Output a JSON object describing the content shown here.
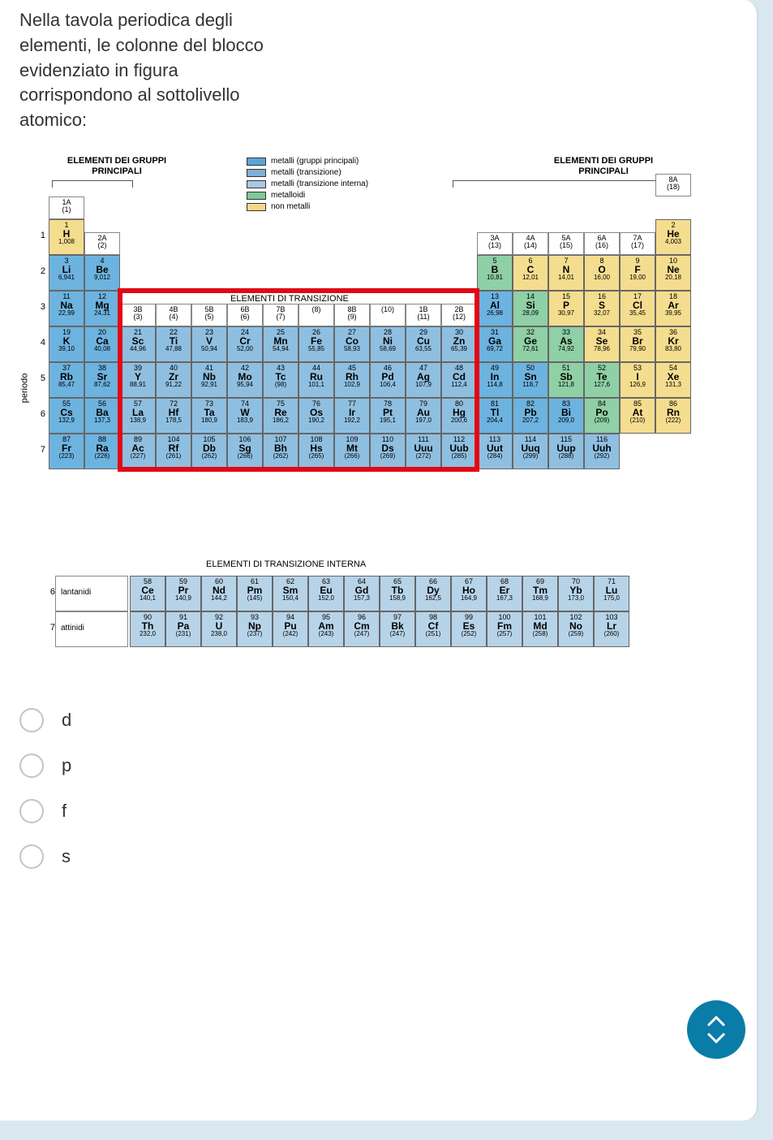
{
  "question": "Nella tavola periodica degli elementi, le colonne del blocco evidenziato in figura corrispondono al sottolivello atomico:",
  "headers": {
    "left": "ELEMENTI DEI GRUPPI PRINCIPALI",
    "right": "ELEMENTI DEI GRUPPI PRINCIPALI",
    "transition": "ELEMENTI DI TRANSIZIONE",
    "inner_transition": "ELEMENTI DI TRANSIZIONE INTERNA",
    "period_axis": "periodo"
  },
  "legend": [
    {
      "label": "metalli (gruppi principali)",
      "color": "#5aa6d8"
    },
    {
      "label": "metalli (transizione)",
      "color": "#7fb0d6"
    },
    {
      "label": "metalli (transizione interna)",
      "color": "#a9c8e2"
    },
    {
      "label": "metalloidi",
      "color": "#7fc89a"
    },
    {
      "label": "non metalli",
      "color": "#f4d88a"
    }
  ],
  "colors": {
    "main_metal": "#6db3df",
    "trans_metal": "#8fbfe0",
    "inner_trans": "#b7d3e8",
    "metalloid": "#8fd0a6",
    "nonmetal": "#f5dd8f",
    "highlight": "#e30613",
    "header_cell": "#ffffff"
  },
  "group_headers": [
    {
      "col": 0,
      "top": "1A",
      "bot": "(1)"
    },
    {
      "col": 1,
      "top": "2A",
      "bot": "(2)"
    },
    {
      "col": 2,
      "top": "3B",
      "bot": "(3)"
    },
    {
      "col": 3,
      "top": "4B",
      "bot": "(4)"
    },
    {
      "col": 4,
      "top": "5B",
      "bot": "(5)"
    },
    {
      "col": 5,
      "top": "6B",
      "bot": "(6)"
    },
    {
      "col": 6,
      "top": "7B",
      "bot": "(7)"
    },
    {
      "col": 7,
      "top": "",
      "bot": "(8)"
    },
    {
      "col": 8,
      "top": "8B",
      "bot": "(9)"
    },
    {
      "col": 9,
      "top": "",
      "bot": "(10)"
    },
    {
      "col": 10,
      "top": "1B",
      "bot": "(11)"
    },
    {
      "col": 11,
      "top": "2B",
      "bot": "(12)"
    },
    {
      "col": 12,
      "top": "3A",
      "bot": "(13)"
    },
    {
      "col": 13,
      "top": "4A",
      "bot": "(14)"
    },
    {
      "col": 14,
      "top": "5A",
      "bot": "(15)"
    },
    {
      "col": 15,
      "top": "6A",
      "bot": "(16)"
    },
    {
      "col": 16,
      "top": "7A",
      "bot": "(17)"
    },
    {
      "col": 17,
      "top": "8A",
      "bot": "(18)"
    }
  ],
  "periods": [
    "1",
    "2",
    "3",
    "4",
    "5",
    "6",
    "7"
  ],
  "elements": [
    {
      "r": 0,
      "c": 0,
      "n": "1",
      "s": "H",
      "m": "1,008",
      "cat": "nonmetal"
    },
    {
      "r": 0,
      "c": 17,
      "n": "2",
      "s": "He",
      "m": "4,003",
      "cat": "nonmetal"
    },
    {
      "r": 1,
      "c": 0,
      "n": "3",
      "s": "Li",
      "m": "6,941",
      "cat": "main_metal"
    },
    {
      "r": 1,
      "c": 1,
      "n": "4",
      "s": "Be",
      "m": "9,012",
      "cat": "main_metal"
    },
    {
      "r": 1,
      "c": 12,
      "n": "5",
      "s": "B",
      "m": "10,81",
      "cat": "metalloid"
    },
    {
      "r": 1,
      "c": 13,
      "n": "6",
      "s": "C",
      "m": "12,01",
      "cat": "nonmetal"
    },
    {
      "r": 1,
      "c": 14,
      "n": "7",
      "s": "N",
      "m": "14,01",
      "cat": "nonmetal"
    },
    {
      "r": 1,
      "c": 15,
      "n": "8",
      "s": "O",
      "m": "16,00",
      "cat": "nonmetal"
    },
    {
      "r": 1,
      "c": 16,
      "n": "9",
      "s": "F",
      "m": "19,00",
      "cat": "nonmetal"
    },
    {
      "r": 1,
      "c": 17,
      "n": "10",
      "s": "Ne",
      "m": "20,18",
      "cat": "nonmetal"
    },
    {
      "r": 2,
      "c": 0,
      "n": "11",
      "s": "Na",
      "m": "22,99",
      "cat": "main_metal"
    },
    {
      "r": 2,
      "c": 1,
      "n": "12",
      "s": "Mg",
      "m": "24,31",
      "cat": "main_metal"
    },
    {
      "r": 2,
      "c": 12,
      "n": "13",
      "s": "Al",
      "m": "26,98",
      "cat": "main_metal"
    },
    {
      "r": 2,
      "c": 13,
      "n": "14",
      "s": "Si",
      "m": "28,09",
      "cat": "metalloid"
    },
    {
      "r": 2,
      "c": 14,
      "n": "15",
      "s": "P",
      "m": "30,97",
      "cat": "nonmetal"
    },
    {
      "r": 2,
      "c": 15,
      "n": "16",
      "s": "S",
      "m": "32,07",
      "cat": "nonmetal"
    },
    {
      "r": 2,
      "c": 16,
      "n": "17",
      "s": "Cl",
      "m": "35,45",
      "cat": "nonmetal"
    },
    {
      "r": 2,
      "c": 17,
      "n": "18",
      "s": "Ar",
      "m": "39,95",
      "cat": "nonmetal"
    },
    {
      "r": 3,
      "c": 0,
      "n": "19",
      "s": "K",
      "m": "39,10",
      "cat": "main_metal"
    },
    {
      "r": 3,
      "c": 1,
      "n": "20",
      "s": "Ca",
      "m": "40,08",
      "cat": "main_metal"
    },
    {
      "r": 3,
      "c": 2,
      "n": "21",
      "s": "Sc",
      "m": "44,96",
      "cat": "trans_metal"
    },
    {
      "r": 3,
      "c": 3,
      "n": "22",
      "s": "Ti",
      "m": "47,88",
      "cat": "trans_metal"
    },
    {
      "r": 3,
      "c": 4,
      "n": "23",
      "s": "V",
      "m": "50,94",
      "cat": "trans_metal"
    },
    {
      "r": 3,
      "c": 5,
      "n": "24",
      "s": "Cr",
      "m": "52,00",
      "cat": "trans_metal"
    },
    {
      "r": 3,
      "c": 6,
      "n": "25",
      "s": "Mn",
      "m": "54,94",
      "cat": "trans_metal"
    },
    {
      "r": 3,
      "c": 7,
      "n": "26",
      "s": "Fe",
      "m": "55,85",
      "cat": "trans_metal"
    },
    {
      "r": 3,
      "c": 8,
      "n": "27",
      "s": "Co",
      "m": "58,93",
      "cat": "trans_metal"
    },
    {
      "r": 3,
      "c": 9,
      "n": "28",
      "s": "Ni",
      "m": "58,69",
      "cat": "trans_metal"
    },
    {
      "r": 3,
      "c": 10,
      "n": "29",
      "s": "Cu",
      "m": "63,55",
      "cat": "trans_metal"
    },
    {
      "r": 3,
      "c": 11,
      "n": "30",
      "s": "Zn",
      "m": "65,39",
      "cat": "trans_metal"
    },
    {
      "r": 3,
      "c": 12,
      "n": "31",
      "s": "Ga",
      "m": "69,72",
      "cat": "main_metal"
    },
    {
      "r": 3,
      "c": 13,
      "n": "32",
      "s": "Ge",
      "m": "72,61",
      "cat": "metalloid"
    },
    {
      "r": 3,
      "c": 14,
      "n": "33",
      "s": "As",
      "m": "74,92",
      "cat": "metalloid"
    },
    {
      "r": 3,
      "c": 15,
      "n": "34",
      "s": "Se",
      "m": "78,96",
      "cat": "nonmetal"
    },
    {
      "r": 3,
      "c": 16,
      "n": "35",
      "s": "Br",
      "m": "79,90",
      "cat": "nonmetal"
    },
    {
      "r": 3,
      "c": 17,
      "n": "36",
      "s": "Kr",
      "m": "83,80",
      "cat": "nonmetal"
    },
    {
      "r": 4,
      "c": 0,
      "n": "37",
      "s": "Rb",
      "m": "85,47",
      "cat": "main_metal"
    },
    {
      "r": 4,
      "c": 1,
      "n": "38",
      "s": "Sr",
      "m": "87,62",
      "cat": "main_metal"
    },
    {
      "r": 4,
      "c": 2,
      "n": "39",
      "s": "Y",
      "m": "88,91",
      "cat": "trans_metal"
    },
    {
      "r": 4,
      "c": 3,
      "n": "40",
      "s": "Zr",
      "m": "91,22",
      "cat": "trans_metal"
    },
    {
      "r": 4,
      "c": 4,
      "n": "41",
      "s": "Nb",
      "m": "92,91",
      "cat": "trans_metal"
    },
    {
      "r": 4,
      "c": 5,
      "n": "42",
      "s": "Mo",
      "m": "95,94",
      "cat": "trans_metal"
    },
    {
      "r": 4,
      "c": 6,
      "n": "43",
      "s": "Tc",
      "m": "(98)",
      "cat": "trans_metal"
    },
    {
      "r": 4,
      "c": 7,
      "n": "44",
      "s": "Ru",
      "m": "101,1",
      "cat": "trans_metal"
    },
    {
      "r": 4,
      "c": 8,
      "n": "45",
      "s": "Rh",
      "m": "102,9",
      "cat": "trans_metal"
    },
    {
      "r": 4,
      "c": 9,
      "n": "46",
      "s": "Pd",
      "m": "106,4",
      "cat": "trans_metal"
    },
    {
      "r": 4,
      "c": 10,
      "n": "47",
      "s": "Ag",
      "m": "107,9",
      "cat": "trans_metal"
    },
    {
      "r": 4,
      "c": 11,
      "n": "48",
      "s": "Cd",
      "m": "112,4",
      "cat": "trans_metal"
    },
    {
      "r": 4,
      "c": 12,
      "n": "49",
      "s": "In",
      "m": "114,8",
      "cat": "main_metal"
    },
    {
      "r": 4,
      "c": 13,
      "n": "50",
      "s": "Sn",
      "m": "118,7",
      "cat": "main_metal"
    },
    {
      "r": 4,
      "c": 14,
      "n": "51",
      "s": "Sb",
      "m": "121,8",
      "cat": "metalloid"
    },
    {
      "r": 4,
      "c": 15,
      "n": "52",
      "s": "Te",
      "m": "127,6",
      "cat": "metalloid"
    },
    {
      "r": 4,
      "c": 16,
      "n": "53",
      "s": "I",
      "m": "126,9",
      "cat": "nonmetal"
    },
    {
      "r": 4,
      "c": 17,
      "n": "54",
      "s": "Xe",
      "m": "131,3",
      "cat": "nonmetal"
    },
    {
      "r": 5,
      "c": 0,
      "n": "55",
      "s": "Cs",
      "m": "132,9",
      "cat": "main_metal"
    },
    {
      "r": 5,
      "c": 1,
      "n": "56",
      "s": "Ba",
      "m": "137,3",
      "cat": "main_metal"
    },
    {
      "r": 5,
      "c": 2,
      "n": "57",
      "s": "La",
      "m": "138,9",
      "cat": "trans_metal"
    },
    {
      "r": 5,
      "c": 3,
      "n": "72",
      "s": "Hf",
      "m": "178,5",
      "cat": "trans_metal"
    },
    {
      "r": 5,
      "c": 4,
      "n": "73",
      "s": "Ta",
      "m": "180,9",
      "cat": "trans_metal"
    },
    {
      "r": 5,
      "c": 5,
      "n": "74",
      "s": "W",
      "m": "183,9",
      "cat": "trans_metal"
    },
    {
      "r": 5,
      "c": 6,
      "n": "75",
      "s": "Re",
      "m": "186,2",
      "cat": "trans_metal"
    },
    {
      "r": 5,
      "c": 7,
      "n": "76",
      "s": "Os",
      "m": "190,2",
      "cat": "trans_metal"
    },
    {
      "r": 5,
      "c": 8,
      "n": "77",
      "s": "Ir",
      "m": "192,2",
      "cat": "trans_metal"
    },
    {
      "r": 5,
      "c": 9,
      "n": "78",
      "s": "Pt",
      "m": "195,1",
      "cat": "trans_metal"
    },
    {
      "r": 5,
      "c": 10,
      "n": "79",
      "s": "Au",
      "m": "197,0",
      "cat": "trans_metal"
    },
    {
      "r": 5,
      "c": 11,
      "n": "80",
      "s": "Hg",
      "m": "200,6",
      "cat": "trans_metal"
    },
    {
      "r": 5,
      "c": 12,
      "n": "81",
      "s": "Tl",
      "m": "204,4",
      "cat": "main_metal"
    },
    {
      "r": 5,
      "c": 13,
      "n": "82",
      "s": "Pb",
      "m": "207,2",
      "cat": "main_metal"
    },
    {
      "r": 5,
      "c": 14,
      "n": "83",
      "s": "Bi",
      "m": "209,0",
      "cat": "main_metal"
    },
    {
      "r": 5,
      "c": 15,
      "n": "84",
      "s": "Po",
      "m": "(209)",
      "cat": "metalloid"
    },
    {
      "r": 5,
      "c": 16,
      "n": "85",
      "s": "At",
      "m": "(210)",
      "cat": "nonmetal"
    },
    {
      "r": 5,
      "c": 17,
      "n": "86",
      "s": "Rn",
      "m": "(222)",
      "cat": "nonmetal"
    },
    {
      "r": 6,
      "c": 0,
      "n": "87",
      "s": "Fr",
      "m": "(223)",
      "cat": "main_metal"
    },
    {
      "r": 6,
      "c": 1,
      "n": "88",
      "s": "Ra",
      "m": "(226)",
      "cat": "main_metal"
    },
    {
      "r": 6,
      "c": 2,
      "n": "89",
      "s": "Ac",
      "m": "(227)",
      "cat": "trans_metal"
    },
    {
      "r": 6,
      "c": 3,
      "n": "104",
      "s": "Rf",
      "m": "(261)",
      "cat": "trans_metal"
    },
    {
      "r": 6,
      "c": 4,
      "n": "105",
      "s": "Db",
      "m": "(262)",
      "cat": "trans_metal"
    },
    {
      "r": 6,
      "c": 5,
      "n": "106",
      "s": "Sg",
      "m": "(266)",
      "cat": "trans_metal"
    },
    {
      "r": 6,
      "c": 6,
      "n": "107",
      "s": "Bh",
      "m": "(262)",
      "cat": "trans_metal"
    },
    {
      "r": 6,
      "c": 7,
      "n": "108",
      "s": "Hs",
      "m": "(265)",
      "cat": "trans_metal"
    },
    {
      "r": 6,
      "c": 8,
      "n": "109",
      "s": "Mt",
      "m": "(266)",
      "cat": "trans_metal"
    },
    {
      "r": 6,
      "c": 9,
      "n": "110",
      "s": "Ds",
      "m": "(269)",
      "cat": "trans_metal"
    },
    {
      "r": 6,
      "c": 10,
      "n": "111",
      "s": "Uuu",
      "m": "(272)",
      "cat": "trans_metal"
    },
    {
      "r": 6,
      "c": 11,
      "n": "112",
      "s": "Uub",
      "m": "(285)",
      "cat": "trans_metal"
    },
    {
      "r": 6,
      "c": 12,
      "n": "113",
      "s": "Uut",
      "m": "(284)",
      "cat": "trans_metal"
    },
    {
      "r": 6,
      "c": 13,
      "n": "114",
      "s": "Uuq",
      "m": "(299)",
      "cat": "trans_metal"
    },
    {
      "r": 6,
      "c": 14,
      "n": "115",
      "s": "Uup",
      "m": "(288)",
      "cat": "trans_metal"
    },
    {
      "r": 6,
      "c": 15,
      "n": "116",
      "s": "Uuh",
      "m": "(292)",
      "cat": "trans_metal"
    }
  ],
  "lanthanides": [
    {
      "n": "58",
      "s": "Ce",
      "m": "140,1"
    },
    {
      "n": "59",
      "s": "Pr",
      "m": "140,9"
    },
    {
      "n": "60",
      "s": "Nd",
      "m": "144,2"
    },
    {
      "n": "61",
      "s": "Pm",
      "m": "(145)"
    },
    {
      "n": "62",
      "s": "Sm",
      "m": "150,4"
    },
    {
      "n": "63",
      "s": "Eu",
      "m": "152,0"
    },
    {
      "n": "64",
      "s": "Gd",
      "m": "157,3"
    },
    {
      "n": "65",
      "s": "Tb",
      "m": "158,9"
    },
    {
      "n": "66",
      "s": "Dy",
      "m": "162,5"
    },
    {
      "n": "67",
      "s": "Ho",
      "m": "164,9"
    },
    {
      "n": "68",
      "s": "Er",
      "m": "167,3"
    },
    {
      "n": "69",
      "s": "Tm",
      "m": "168,9"
    },
    {
      "n": "70",
      "s": "Yb",
      "m": "173,0"
    },
    {
      "n": "71",
      "s": "Lu",
      "m": "175,0"
    }
  ],
  "actinides": [
    {
      "n": "90",
      "s": "Th",
      "m": "232,0"
    },
    {
      "n": "91",
      "s": "Pa",
      "m": "(231)"
    },
    {
      "n": "92",
      "s": "U",
      "m": "238,0"
    },
    {
      "n": "93",
      "s": "Np",
      "m": "(237)"
    },
    {
      "n": "94",
      "s": "Pu",
      "m": "(242)"
    },
    {
      "n": "95",
      "s": "Am",
      "m": "(243)"
    },
    {
      "n": "96",
      "s": "Cm",
      "m": "(247)"
    },
    {
      "n": "97",
      "s": "Bk",
      "m": "(247)"
    },
    {
      "n": "98",
      "s": "Cf",
      "m": "(251)"
    },
    {
      "n": "99",
      "s": "Es",
      "m": "(252)"
    },
    {
      "n": "100",
      "s": "Fm",
      "m": "(257)"
    },
    {
      "n": "101",
      "s": "Md",
      "m": "(258)"
    },
    {
      "n": "102",
      "s": "No",
      "m": "(259)"
    },
    {
      "n": "103",
      "s": "Lr",
      "m": "(260)"
    }
  ],
  "lan_act_labels": {
    "lan": "lantanidi",
    "act": "attinidi",
    "lan_p": "6",
    "act_p": "7"
  },
  "highlight": {
    "col_start": 2,
    "col_end": 11,
    "row_start": 2,
    "row_end": 6
  },
  "options": [
    "d",
    "p",
    "f",
    "s"
  ]
}
